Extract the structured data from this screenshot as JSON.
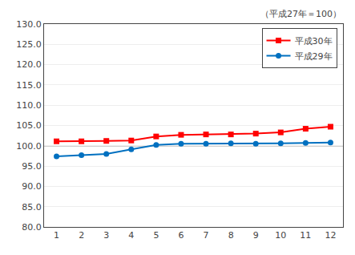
{
  "chart_data": {
    "type": "line",
    "annotation": "（平成27年＝100）",
    "x": [
      1,
      2,
      3,
      4,
      5,
      6,
      7,
      8,
      9,
      10,
      11,
      12
    ],
    "series": [
      {
        "name": "平成30年",
        "color": "#ff0000",
        "marker": "square",
        "values": [
          101.1,
          101.1,
          101.2,
          101.3,
          102.3,
          102.7,
          102.8,
          102.8,
          103.0,
          103.3,
          104.2,
          104.7
        ]
      },
      {
        "name": "平成29年",
        "color": "#0070c0",
        "marker": "circle",
        "values": [
          97.4,
          97.7,
          98.0,
          99.1,
          100.2,
          100.5,
          100.5,
          100.6,
          100.5,
          100.6,
          100.7,
          100.8
        ]
      }
    ],
    "hline": 100.0,
    "hline_color": "#a0a0a0",
    "xlim": [
      0.5,
      12.5
    ],
    "xticks": [
      1,
      2,
      3,
      4,
      5,
      6,
      7,
      8,
      9,
      10,
      11,
      12
    ],
    "ylim": [
      80.0,
      130.0
    ],
    "yticks": [
      {
        "value": 80.0,
        "label": "80.0"
      },
      {
        "value": 85.0,
        "label": "85.0"
      },
      {
        "value": 90.0,
        "label": "90.0"
      },
      {
        "value": 95.0,
        "label": "95.0"
      },
      {
        "value": 100.0,
        "label": "100.0"
      },
      {
        "value": 105.0,
        "label": "105.0"
      },
      {
        "value": 110.0,
        "label": "110.0"
      },
      {
        "value": 115.0,
        "label": "115.0"
      },
      {
        "value": 120.0,
        "label": "120.0"
      },
      {
        "value": 125.0,
        "label": "125.0"
      },
      {
        "value": 130.0,
        "label": "130.0"
      }
    ],
    "grid": true,
    "legend": "upper right"
  }
}
